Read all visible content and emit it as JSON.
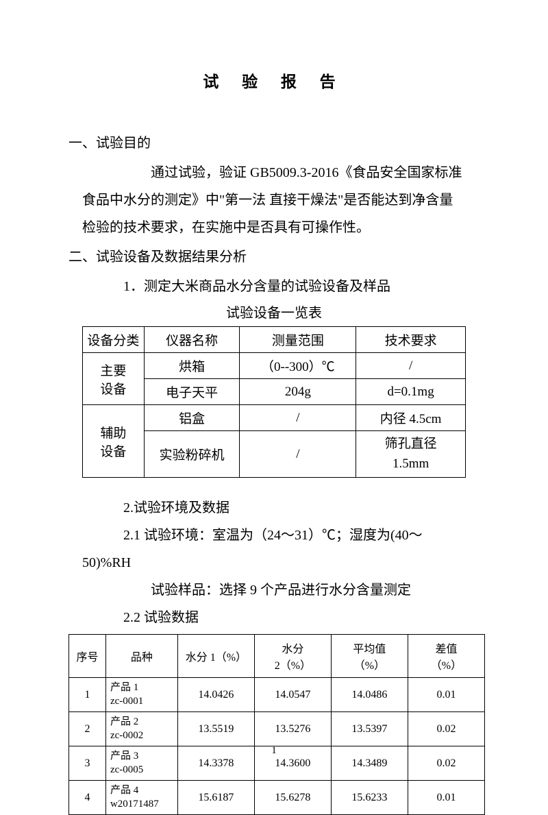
{
  "title": "试 验 报 告",
  "section1": {
    "heading": "一、试验目的",
    "body": "通过试验，验证 GB5009.3-2016《食品安全国家标准 食品中水分的测定》中\"第一法 直接干燥法\"是否能达到净含量检验的技术要求，在实施中是否具有可操作性。"
  },
  "section2": {
    "heading": "二、试验设备及数据结果分析",
    "sub1": "1．测定大米商品水分含量的试验设备及样品",
    "table1_caption": "试验设备一览表",
    "equipment_table": {
      "headers": [
        "设备分类",
        "仪器名称",
        "测量范围",
        "技术要求"
      ],
      "cat_main": "主要\n设备",
      "cat_aux": "辅助\n设备",
      "rows": [
        {
          "name": "烘箱",
          "range": "（0--300）℃",
          "req": "/"
        },
        {
          "name": "电子天平",
          "range": "204g",
          "req": "d=0.1mg"
        },
        {
          "name": "铝盒",
          "range": "/",
          "req": "内径 4.5cm"
        },
        {
          "name": "实验粉碎机",
          "range": "/",
          "req": "筛孔直径\n1.5mm"
        }
      ]
    },
    "sub2": "2.试验环境及数据",
    "sub2_1": "2.1 试验环境：室温为（24～31）℃；湿度为(40～50)%RH",
    "sub2_1b": "试验样品：选择 9 个产品进行水分含量测定",
    "sub2_2": "2.2 试验数据",
    "data_table": {
      "headers": [
        "序号",
        "品种",
        "水分 1（%）",
        "水分\n2（%）",
        "平均值\n（%）",
        "差值\n（%）"
      ],
      "rows": [
        {
          "seq": "1",
          "product": "产品 1\nzc-0001",
          "m1": "14.0426",
          "m2": "14.0547",
          "avg": "14.0486",
          "diff": "0.01"
        },
        {
          "seq": "2",
          "product": "产品 2\nzc-0002",
          "m1": "13.5519",
          "m2": "13.5276",
          "avg": "13.5397",
          "diff": "0.02"
        },
        {
          "seq": "3",
          "product": "产品 3\nzc-0005",
          "m1": "14.3378",
          "m2": "14.3600",
          "avg": "14.3489",
          "diff": "0.02"
        },
        {
          "seq": "4",
          "product": "产品 4\nw20171487",
          "m1": "15.6187",
          "m2": "15.6278",
          "avg": "15.6233",
          "diff": "0.01"
        }
      ]
    }
  },
  "page_number": "1"
}
